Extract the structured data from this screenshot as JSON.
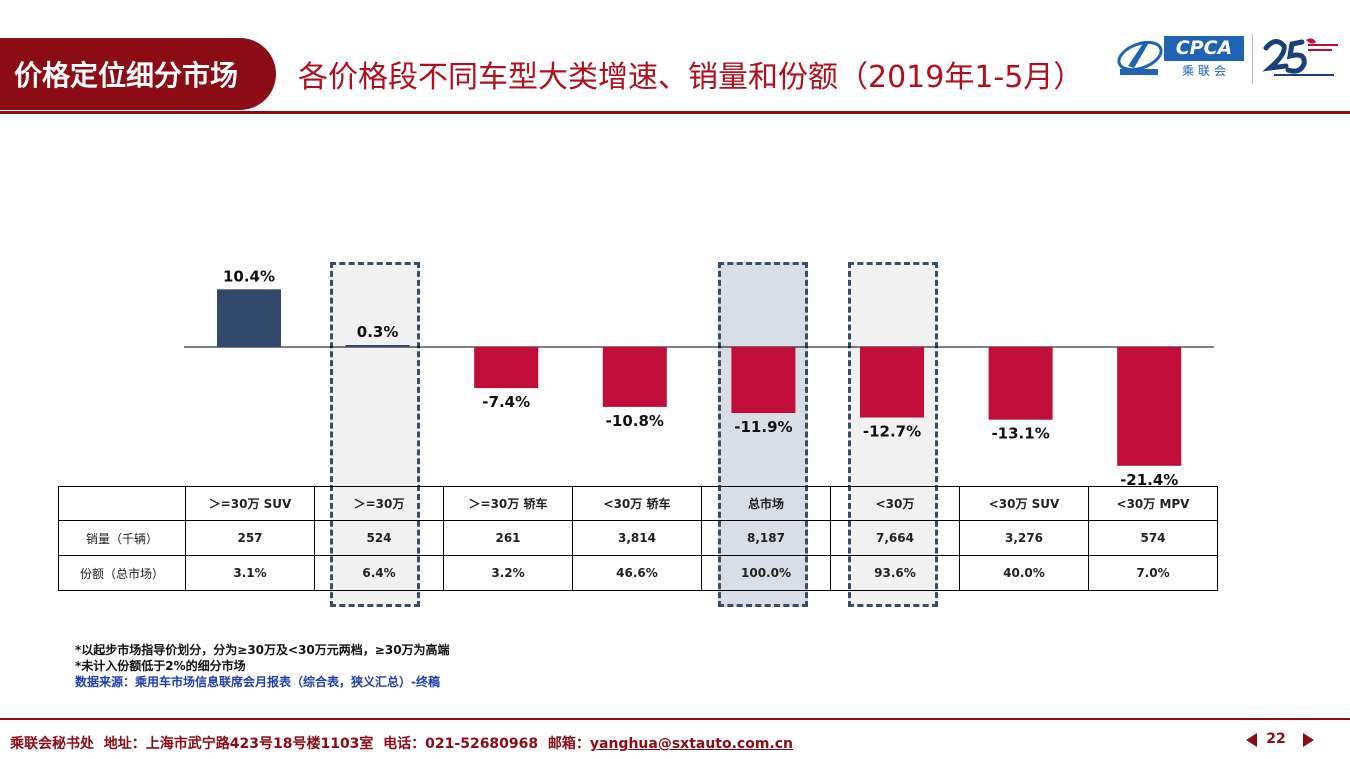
{
  "header": {
    "section_tag": "价格定位细分市场",
    "title": "各价格段不同车型大类增速、销量和份额（2019年1-5月）"
  },
  "logos": {
    "cpca": "CPCA",
    "cpca_sub": "乘联会"
  },
  "chart_data": {
    "type": "bar",
    "categories": [
      ">=30万 SUV",
      ">=30万",
      ">=30万 轿车",
      "<30万 轿车",
      "总市场",
      "<30万",
      "<30万 SUV",
      "<30万 MPV"
    ],
    "values": [
      10.4,
      0.3,
      -7.4,
      -10.8,
      -11.9,
      -12.7,
      -13.1,
      -21.4
    ],
    "value_labels": [
      "10.4%",
      "0.3%",
      "-7.4%",
      "-10.8%",
      "-11.9%",
      "-12.7%",
      "-13.1%",
      "-21.4%"
    ],
    "highlighted": [
      ">=30万",
      "总市场",
      "<30万"
    ],
    "colors": {
      "positive": "#33496b",
      "negative": "#c00d3a",
      "highlight_fill": "#d8dde6",
      "highlight_border": "#3b4d63"
    }
  },
  "table": {
    "header_labels": [
      "＞=30万 SUV",
      "＞=30万",
      "＞=30万 轿车",
      "<30万 轿车",
      "总市场",
      "<30万",
      "<30万 SUV",
      "<30万 MPV"
    ],
    "rows": [
      {
        "label": "销量（千辆）",
        "values": [
          "257",
          "524",
          "261",
          "3,814",
          "8,187",
          "7,664",
          "3,276",
          "574"
        ]
      },
      {
        "label": "份额（总市场）",
        "values": [
          "3.1%",
          "6.4%",
          "3.2%",
          "46.6%",
          "100.0%",
          "93.6%",
          "40.0%",
          "7.0%"
        ]
      }
    ]
  },
  "notes": {
    "note1": "*以起步市场指导价划分，分为≥30万及<30万元两档，≥30万为高端",
    "note2": "*未计入份额低于2%的细分市场",
    "source": "数据来源：乘用车市场信息联席会月报表（综合表，狭义汇总）-终稿"
  },
  "footer": {
    "org": "乘联会秘书处",
    "address": "地址：上海市武宁路423号18号楼1103室",
    "phone": "电话：021-52680968",
    "email_label": "邮箱：",
    "email": "yanghua@sxtauto.com.cn",
    "page": "22"
  }
}
